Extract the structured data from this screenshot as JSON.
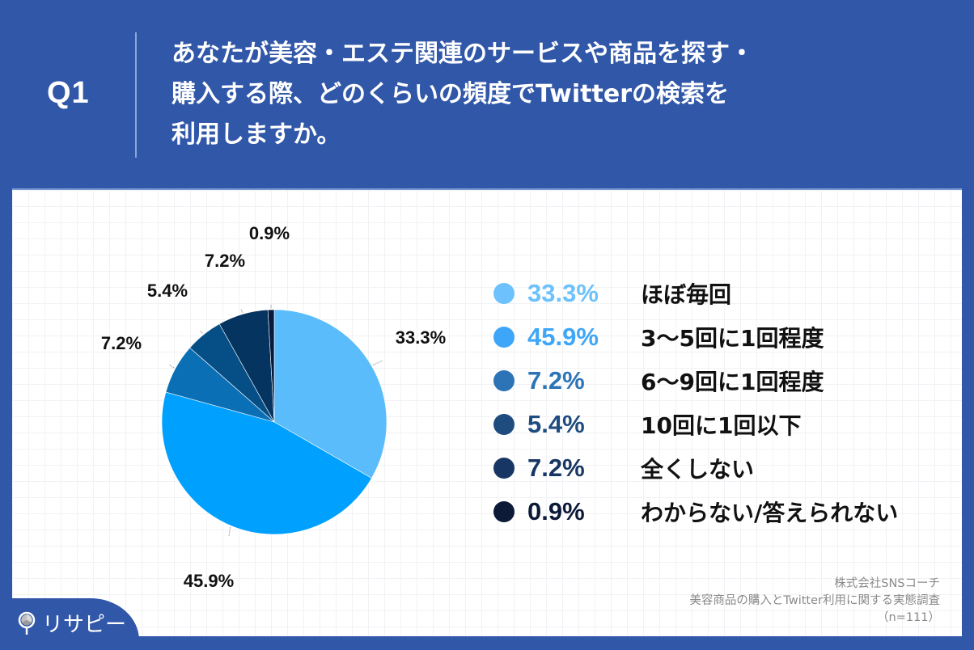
{
  "header": {
    "q_label": "Q1",
    "question_lines": [
      "あなたが美容・エステ関連のサービスや商品を探す・",
      "購入する際、どのくらいの頻度でTwitterの検索を",
      "利用しますか。"
    ]
  },
  "chart_data": {
    "type": "pie",
    "title": "あなたが美容・エステ関連のサービスや商品を探す・購入する際、どのくらいの頻度でTwitterの検索を利用しますか。",
    "categories": [
      "ほぼ毎回",
      "3〜5回に1回程度",
      "6〜9回に1回程度",
      "10回に1回以下",
      "全くしない",
      "わからない/答えられない"
    ],
    "values": [
      33.3,
      45.9,
      7.2,
      5.4,
      7.2,
      0.9
    ],
    "value_labels": [
      "33.3%",
      "45.9%",
      "7.2%",
      "5.4%",
      "7.2%",
      "0.9%"
    ],
    "colors": [
      "#5bbcfc",
      "#00a0ff",
      "#0b6fb5",
      "#064f86",
      "#04345f",
      "#071a3d"
    ],
    "start_angle_deg": 0,
    "direction": "clockwise",
    "legend_position": "right",
    "n": 111
  },
  "legend": {
    "items": [
      {
        "pct": "33.3%",
        "label": "ほぼ毎回",
        "dot_color": "#6dc2fd",
        "pct_color": "#6dc2fd"
      },
      {
        "pct": "45.9%",
        "label": "3〜5回に1回程度",
        "dot_color": "#3ea6f8",
        "pct_color": "#3ea6f8"
      },
      {
        "pct": "7.2%",
        "label": "6〜9回に1回程度",
        "dot_color": "#2c74b6",
        "pct_color": "#2c74b6"
      },
      {
        "pct": "5.4%",
        "label": "10回に1回以下",
        "dot_color": "#1f4c7f",
        "pct_color": "#1f4c7f"
      },
      {
        "pct": "7.2%",
        "label": "全くしない",
        "dot_color": "#173664",
        "pct_color": "#173664"
      },
      {
        "pct": "0.9%",
        "label": "わからない/答えられない",
        "dot_color": "#0c1a38",
        "pct_color": "#0c1a38"
      }
    ]
  },
  "source": {
    "company": "株式会社SNSコーチ",
    "survey": "美容商品の購入とTwitter利用に関する実態調査",
    "sample": "（n=111）"
  },
  "logo": {
    "text": "リサピー"
  }
}
